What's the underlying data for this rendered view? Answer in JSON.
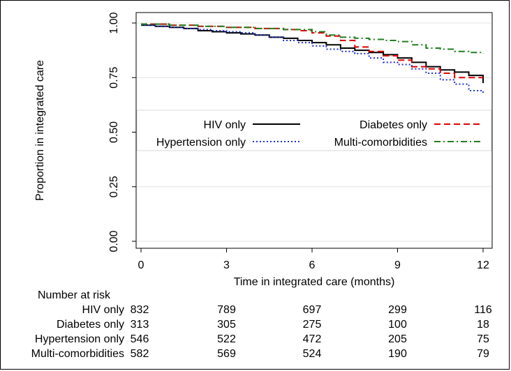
{
  "chart_data": {
    "type": "line",
    "title": "",
    "xlabel": "Time in integrated care (months)",
    "ylabel": "Proportion in integrated care",
    "xlim": [
      0,
      12
    ],
    "ylim": [
      0,
      1
    ],
    "x_ticks": [
      0,
      3,
      6,
      9,
      12
    ],
    "x_tick_labels": [
      "0",
      "3",
      "6",
      "9",
      "12"
    ],
    "y_ticks": [
      0,
      0.25,
      0.5,
      0.75,
      1
    ],
    "y_tick_labels": [
      "0.00",
      "0.25",
      "0.50",
      "0.75",
      "1.00"
    ],
    "legend_position": "middle",
    "series": [
      {
        "name": "HIV only",
        "color": "#000000",
        "style": "solid",
        "x": [
          0,
          0.5,
          1,
          1.5,
          2,
          2.5,
          3,
          3.5,
          4,
          4.5,
          5,
          5.5,
          6,
          6.5,
          7,
          7.5,
          8,
          8.5,
          9,
          9.5,
          10,
          10.5,
          11,
          11.5,
          12
        ],
        "y": [
          0.99,
          0.985,
          0.98,
          0.975,
          0.965,
          0.96,
          0.955,
          0.95,
          0.945,
          0.935,
          0.93,
          0.92,
          0.91,
          0.9,
          0.885,
          0.875,
          0.865,
          0.855,
          0.84,
          0.82,
          0.8,
          0.785,
          0.775,
          0.76,
          0.725
        ]
      },
      {
        "name": "Diabetes only",
        "color": "#dd0000",
        "style": "dashed",
        "x": [
          0,
          1,
          2,
          3,
          4,
          5,
          5.5,
          6,
          6.5,
          7,
          7.5,
          8,
          8.5,
          9,
          9.5,
          10,
          10.5,
          11,
          11.5,
          12
        ],
        "y": [
          0.995,
          0.99,
          0.985,
          0.98,
          0.975,
          0.97,
          0.965,
          0.955,
          0.94,
          0.92,
          0.89,
          0.87,
          0.85,
          0.83,
          0.8,
          0.79,
          0.77,
          0.75,
          0.75,
          0.75
        ]
      },
      {
        "name": "Hypertension only",
        "color": "#1f2fd6",
        "style": "dotted",
        "x": [
          0,
          0.5,
          1,
          1.5,
          2,
          2.5,
          3,
          3.5,
          4,
          4.5,
          5,
          5.5,
          6,
          6.5,
          7,
          7.5,
          8,
          8.5,
          9,
          9.5,
          10,
          10.5,
          11,
          11.5,
          12
        ],
        "y": [
          0.99,
          0.985,
          0.98,
          0.975,
          0.97,
          0.965,
          0.96,
          0.955,
          0.945,
          0.935,
          0.92,
          0.91,
          0.895,
          0.88,
          0.87,
          0.86,
          0.84,
          0.82,
          0.81,
          0.79,
          0.77,
          0.74,
          0.72,
          0.69,
          0.68
        ]
      },
      {
        "name": "Multi-comorbidities",
        "color": "#1f7f1f",
        "style": "dashdot",
        "x": [
          0,
          1,
          2,
          3,
          4,
          5,
          6,
          6.5,
          7,
          7.5,
          8,
          8.5,
          9,
          9.5,
          10,
          10.5,
          11,
          11.5,
          12
        ],
        "y": [
          0.995,
          0.99,
          0.985,
          0.98,
          0.975,
          0.97,
          0.96,
          0.945,
          0.935,
          0.93,
          0.925,
          0.92,
          0.915,
          0.9,
          0.885,
          0.88,
          0.87,
          0.865,
          0.86
        ]
      }
    ],
    "risk_table": {
      "header": "Number at risk",
      "columns": [
        0,
        3,
        6,
        9,
        12
      ],
      "rows": [
        {
          "label": "HIV only",
          "values": [
            "832",
            "789",
            "697",
            "299",
            "116"
          ]
        },
        {
          "label": "Diabetes only",
          "values": [
            "313",
            "305",
            "275",
            "100",
            "18"
          ]
        },
        {
          "label": "Hypertension only",
          "values": [
            "546",
            "522",
            "472",
            "205",
            "75"
          ]
        },
        {
          "label": "Multi-comorbidities",
          "values": [
            "582",
            "569",
            "524",
            "190",
            "79"
          ]
        }
      ]
    }
  }
}
